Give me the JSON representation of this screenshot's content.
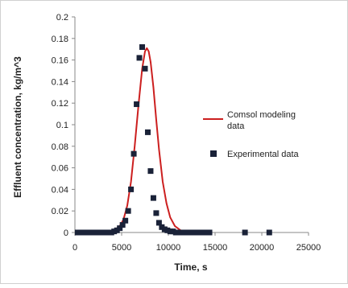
{
  "chart_data": {
    "type": "scatter",
    "title": "",
    "xlabel": "Time, s",
    "ylabel": "Effluent concentration, kg/m^3",
    "xlim": [
      0,
      25000
    ],
    "ylim": [
      0,
      0.2
    ],
    "x_ticks": [
      0,
      5000,
      10000,
      15000,
      20000,
      25000
    ],
    "y_ticks": [
      0,
      0.02,
      0.04,
      0.06,
      0.08,
      0.1,
      0.12,
      0.14,
      0.16,
      0.18,
      0.2
    ],
    "y_tick_labels": [
      "0",
      "0.02",
      "0.04",
      "0.06",
      "0.08",
      "0.1",
      "0.12",
      "0.14",
      "0.16",
      "0.18",
      "0.2"
    ],
    "x_tick_labels": [
      "0",
      "5000",
      "10000",
      "15000",
      "20000",
      "25000"
    ],
    "grid": false,
    "legend_position": "right",
    "series": [
      {
        "name": "Comsol modeling data",
        "kind": "line",
        "color": "#cc1f1f",
        "x": [
          300,
          2000,
          3500,
          4200,
          4800,
          5200,
          5600,
          6000,
          6400,
          6800,
          7200,
          7500,
          7700,
          7900,
          8100,
          8400,
          8700,
          9000,
          9400,
          9800,
          10200,
          10700,
          11300,
          12000,
          13000,
          14000
        ],
        "y": [
          0,
          0,
          0.0005,
          0.002,
          0.006,
          0.012,
          0.025,
          0.047,
          0.08,
          0.118,
          0.152,
          0.168,
          0.171,
          0.168,
          0.158,
          0.135,
          0.105,
          0.077,
          0.047,
          0.027,
          0.014,
          0.006,
          0.002,
          0.0005,
          0,
          0
        ]
      },
      {
        "name": "Experimental data",
        "kind": "scatter",
        "color": "#1a2238",
        "x": [
          300,
          600,
          900,
          1200,
          1500,
          1800,
          2100,
          2400,
          2700,
          3000,
          3300,
          3600,
          3900,
          4200,
          4500,
          4800,
          5100,
          5400,
          5700,
          6000,
          6300,
          6600,
          6900,
          7200,
          7500,
          7800,
          8100,
          8400,
          8700,
          9000,
          9300,
          9600,
          9900,
          10200,
          10500,
          10800,
          11100,
          11400,
          11700,
          12000,
          12300,
          12600,
          12900,
          13200,
          13500,
          13800,
          14100,
          14400,
          18200,
          20800
        ],
        "y": [
          0,
          0,
          0,
          0,
          0,
          0,
          0,
          0,
          0,
          0,
          0,
          0,
          0,
          0.001,
          0.002,
          0.004,
          0.007,
          0.011,
          0.02,
          0.04,
          0.073,
          0.119,
          0.162,
          0.172,
          0.152,
          0.093,
          0.057,
          0.032,
          0.018,
          0.009,
          0.005,
          0.003,
          0.002,
          0.001,
          0.001,
          0,
          0,
          0,
          0,
          0,
          0,
          0,
          0,
          0,
          0,
          0,
          0,
          0,
          0,
          0
        ]
      }
    ]
  }
}
